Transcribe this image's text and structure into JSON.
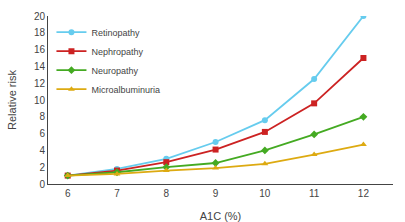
{
  "chart_data": {
    "type": "line",
    "x": [
      6,
      7,
      8,
      9,
      10,
      11,
      12
    ],
    "series": [
      {
        "name": "Retinopathy",
        "color": "#66CCEE",
        "marker": "circle",
        "values": [
          1.0,
          1.8,
          3.0,
          5.0,
          7.6,
          12.5,
          20.0
        ]
      },
      {
        "name": "Nephropathy",
        "color": "#CC2222",
        "marker": "square",
        "values": [
          1.0,
          1.6,
          2.6,
          4.1,
          6.2,
          9.6,
          15.0
        ]
      },
      {
        "name": "Neuropathy",
        "color": "#44AA22",
        "marker": "diamond",
        "values": [
          1.0,
          1.4,
          2.0,
          2.5,
          4.0,
          5.9,
          8.0
        ]
      },
      {
        "name": "Microalbuminuria",
        "color": "#DDAA11",
        "marker": "triangle-up",
        "values": [
          1.0,
          1.2,
          1.6,
          1.9,
          2.4,
          3.5,
          4.7
        ]
      }
    ],
    "xlabel": "A1C (%)",
    "ylabel": "Relative risk",
    "xlim": [
      5.6,
      12.6
    ],
    "ylim": [
      0,
      20
    ],
    "xticks": [
      6,
      7,
      8,
      9,
      10,
      11,
      12
    ],
    "yticks": [
      0,
      2,
      4,
      6,
      8,
      10,
      12,
      14,
      16,
      18,
      20
    ],
    "grid": false,
    "legend": "upper left"
  }
}
